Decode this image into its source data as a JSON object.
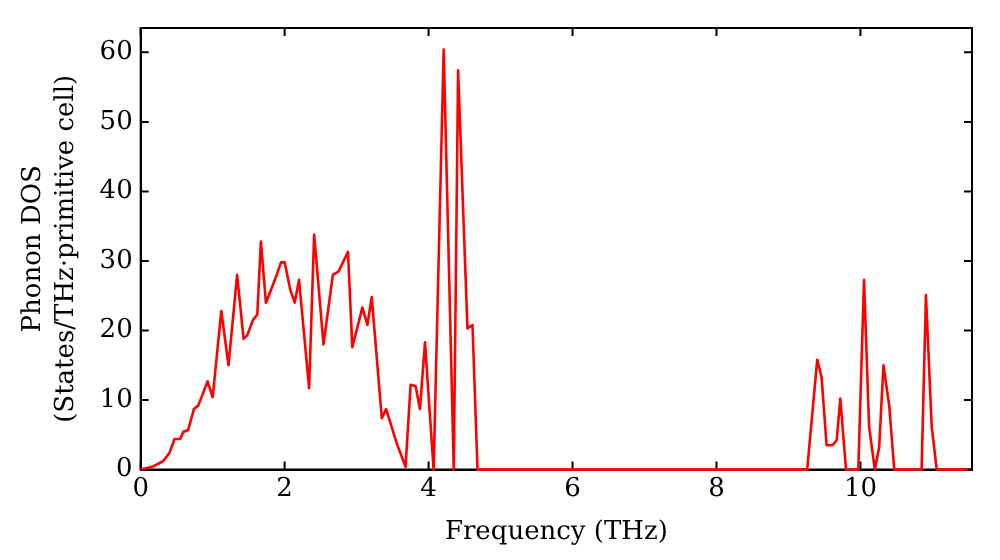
{
  "chart_data": {
    "type": "line",
    "xlabel": "Frequency (THz)",
    "ylabel": "Phonon DOS\n(States/THz·primitive cell)",
    "xlim": [
      0,
      11.55
    ],
    "ylim": [
      0,
      63.5
    ],
    "xticks": [
      0,
      2,
      4,
      6,
      8,
      10
    ],
    "yticks": [
      0,
      10,
      20,
      30,
      40,
      50,
      60
    ],
    "grid": false,
    "legend": false,
    "marker": "none",
    "line_style": "solid",
    "series": [
      {
        "color": "#ff0000",
        "x": [
          0,
          0.16,
          0.31,
          0.4,
          0.47,
          0.55,
          0.59,
          0.66,
          0.74,
          0.8,
          0.93,
          1.0,
          1.12,
          1.22,
          1.34,
          1.43,
          1.48,
          1.56,
          1.62,
          1.67,
          1.74,
          1.79,
          1.89,
          1.95,
          2.0,
          2.08,
          2.14,
          2.2,
          2.34,
          2.41,
          2.54,
          2.67,
          2.75,
          2.88,
          2.94,
          3.08,
          3.15,
          3.21,
          3.35,
          3.41,
          3.56,
          3.68,
          3.75,
          3.82,
          3.88,
          3.95,
          4.07,
          4.21,
          4.35,
          4.41,
          4.54,
          4.61,
          4.68,
          9.26,
          9.4,
          9.46,
          9.53,
          9.61,
          9.67,
          9.72,
          9.8,
          9.97,
          10.05,
          10.12,
          10.2,
          10.26,
          10.32,
          10.4,
          10.47,
          10.85,
          10.91,
          10.99,
          11.06,
          11.5
        ],
        "values": [
          0,
          0.4,
          1.2,
          2.4,
          4.4,
          4.4,
          5.4,
          5.7,
          8.7,
          9.2,
          12.7,
          10.4,
          22.8,
          15,
          28,
          18.8,
          19.3,
          21.5,
          22.3,
          32.8,
          24,
          25.3,
          28,
          29.8,
          29.8,
          25.8,
          24,
          27.3,
          11.7,
          33.8,
          18,
          28,
          28.5,
          31.3,
          17.6,
          23.3,
          20.8,
          24.8,
          7.4,
          8.7,
          3.7,
          0.4,
          12.2,
          12,
          8.7,
          18.3,
          0,
          60.4,
          0,
          57.4,
          20.3,
          20.8,
          0,
          0,
          15.8,
          13.3,
          3.5,
          3.5,
          4.2,
          10.2,
          0,
          0,
          27.3,
          6.2,
          0,
          3.2,
          15,
          9.2,
          0,
          0,
          25.1,
          6.2,
          0,
          0
        ]
      }
    ]
  }
}
